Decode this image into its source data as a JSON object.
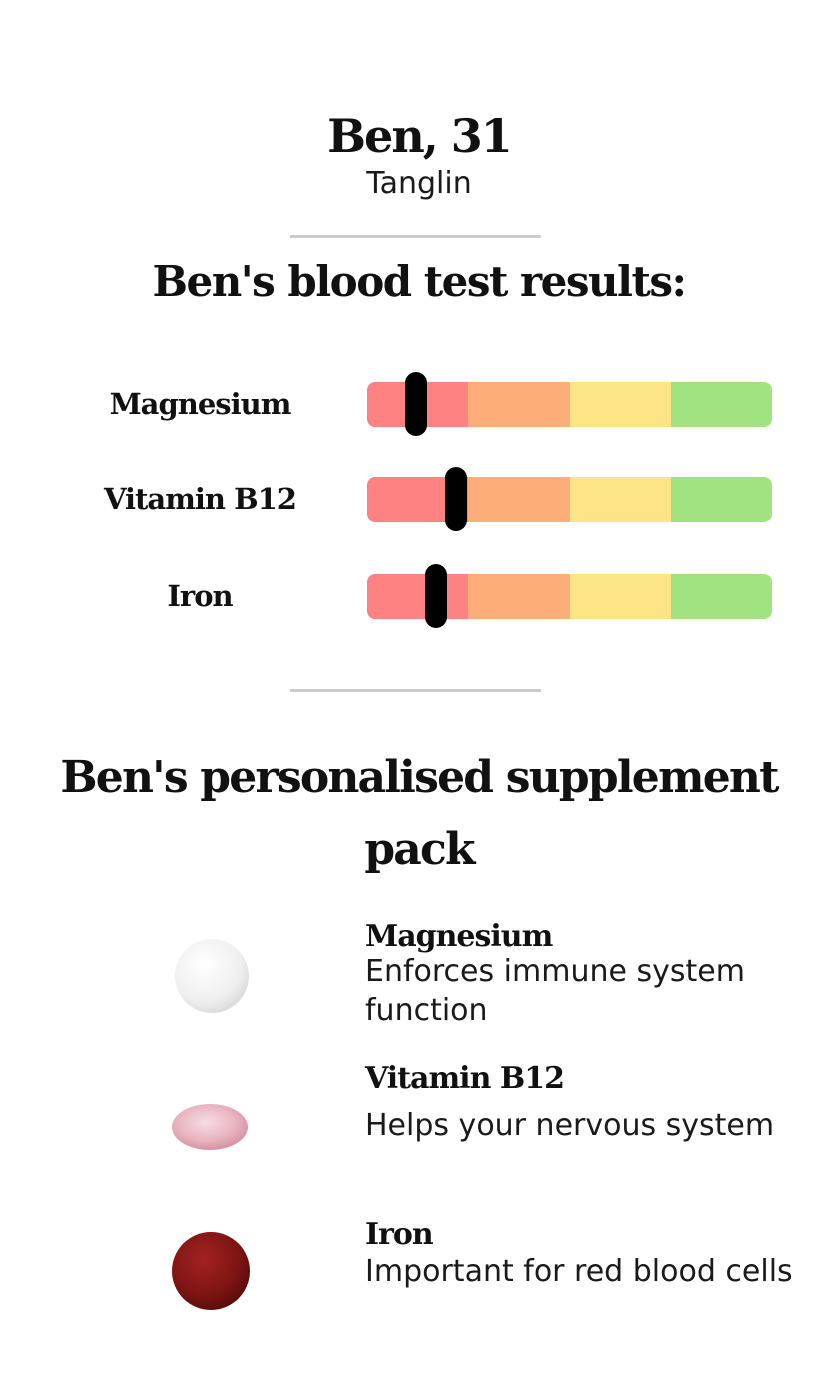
{
  "person": {
    "name": "Ben, 31",
    "location": "Tanglin"
  },
  "results": {
    "title": "Ben's blood test results:",
    "scale_colors": [
      "#fe8282",
      "#fdad78",
      "#fde587",
      "#a1e281"
    ],
    "items": [
      {
        "label": "Magnesium",
        "level": 0.12
      },
      {
        "label": "Vitamin B12",
        "level": 0.22
      },
      {
        "label": "Iron",
        "level": 0.17
      }
    ]
  },
  "pack": {
    "title": "Ben's personalised supplement pack",
    "items": [
      {
        "name": "Magnesium",
        "description": "Enforces immune system function",
        "pill_icon": "white-round-pill-icon",
        "pill_color": "#efefef"
      },
      {
        "name": "Vitamin B12",
        "description": "Helps your nervous system",
        "pill_icon": "pink-oval-pill-icon",
        "pill_color": "#e8b3bf"
      },
      {
        "name": "Iron",
        "description": "Important for red blood cells",
        "pill_icon": "dark-red-round-pill-icon",
        "pill_color": "#7e1414"
      }
    ]
  }
}
